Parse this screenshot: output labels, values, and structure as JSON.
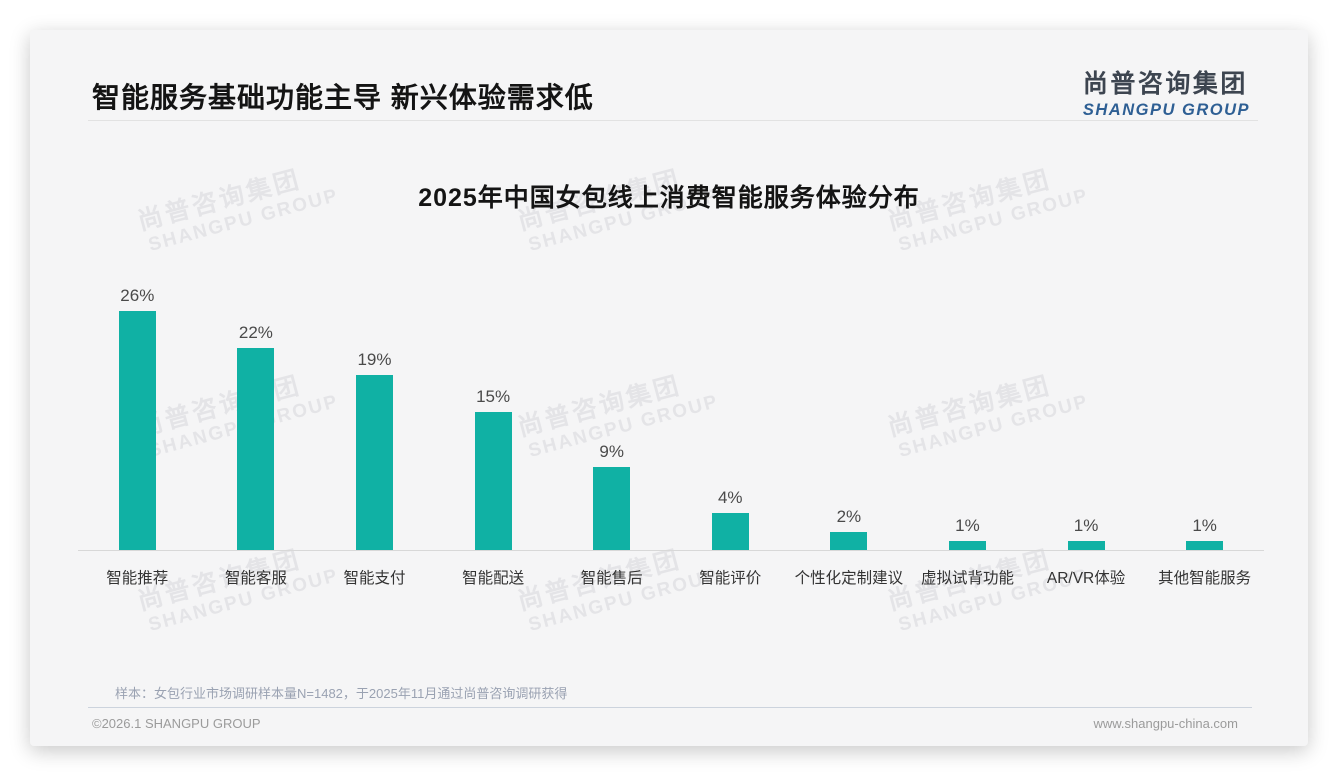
{
  "page": {
    "title": "智能服务基础功能主导 新兴体验需求低",
    "logo": {
      "cn": "尚普咨询集团",
      "en": "SHANGPU GROUP"
    },
    "watermark": {
      "cn": "尚普咨询集团",
      "en": "SHANGPU GROUP"
    },
    "note": "样本：女包行业市场调研样本量N=1482，于2025年11月通过尚普咨询调研获得",
    "footer_left": "©2026.1 SHANGPU GROUP",
    "footer_right": "www.shangpu-china.com"
  },
  "colors": {
    "bar_teal": "#10b1a4",
    "logo_blue": "#2e5f94",
    "axis_line": "#d8d8d8",
    "card_background": "#f5f5f6"
  },
  "chart_data": {
    "type": "bar",
    "title": "2025年中国女包线上消费智能服务体验分布",
    "categories": [
      "智能推荐",
      "智能客服",
      "智能支付",
      "智能配送",
      "智能售后",
      "智能评价",
      "个性化定制建议",
      "虚拟试背功能",
      "AR/VR体验",
      "其他智能服务"
    ],
    "values": [
      26,
      22,
      19,
      15,
      9,
      4,
      2,
      1,
      1,
      1
    ],
    "value_labels": [
      "26%",
      "22%",
      "19%",
      "15%",
      "9%",
      "4%",
      "2%",
      "1%",
      "1%",
      "1%"
    ],
    "unit": "%",
    "xlabel": "",
    "ylabel": "",
    "ylim": [
      0,
      29.5
    ],
    "grid": false,
    "legend": false,
    "value_label_position": "above-bars",
    "bar_color": "#10b1a4"
  }
}
